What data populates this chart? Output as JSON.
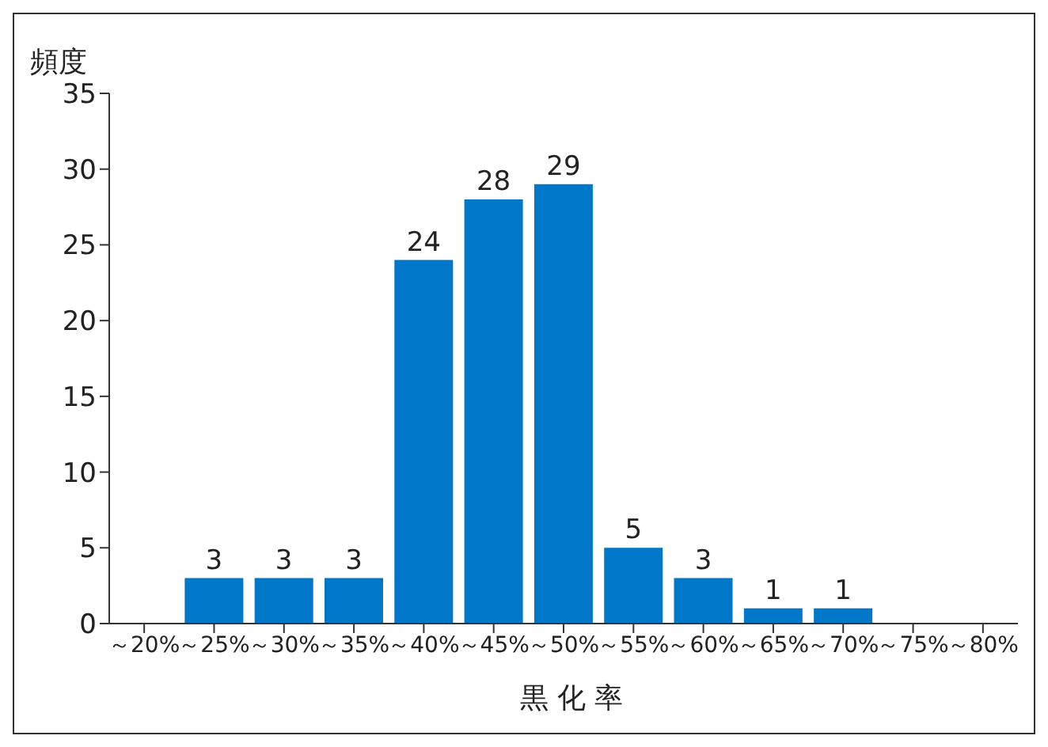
{
  "chart_data": {
    "type": "bar",
    "ylabel": "頻度",
    "xlabel": "黒 化 率",
    "categories": [
      "～20%",
      "～25%",
      "～30%",
      "～35%",
      "～40%",
      "～45%",
      "～50%",
      "～55%",
      "～60%",
      "～65%",
      "～70%",
      "～75%",
      "～80%"
    ],
    "values": [
      0,
      3,
      3,
      3,
      24,
      28,
      29,
      5,
      3,
      1,
      1,
      0,
      0
    ],
    "value_labels": [
      null,
      "3",
      "3",
      "3",
      "24",
      "28",
      "29",
      "5",
      "3",
      "1",
      "1",
      null,
      null
    ],
    "color": "#0077c8",
    "ylim": [
      0,
      35
    ],
    "yticks": [
      0,
      5,
      10,
      15,
      20,
      25,
      30,
      35
    ],
    "grid": false,
    "legend": false
  }
}
